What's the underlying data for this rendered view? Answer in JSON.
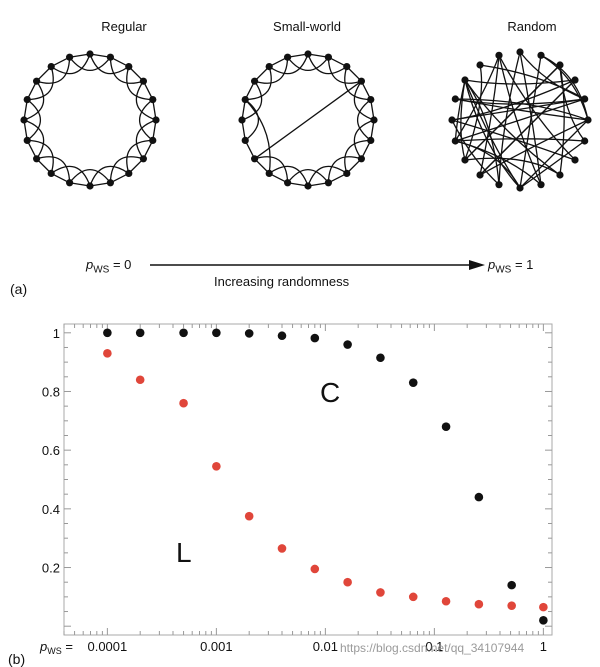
{
  "panel_a": {
    "label": "(a)",
    "networks": [
      {
        "title": "Regular",
        "icon": "regular-ring-network"
      },
      {
        "title": "Small-world",
        "icon": "small-world-ring-network"
      },
      {
        "title": "Random",
        "icon": "random-network"
      }
    ],
    "arrow": {
      "left_symbol": "p",
      "left_sub": "WS",
      "left_value": " = 0",
      "right_symbol": "p",
      "right_sub": "WS",
      "right_value": " = 1",
      "caption": "Increasing randomness"
    }
  },
  "panel_b": {
    "label": "(b)"
  },
  "watermark": "https://blog.csdn.net/qq_34107944",
  "chart_data": {
    "type": "scatter",
    "x_scale": "log",
    "x": [
      0.0001,
      0.0002,
      0.0005,
      0.001,
      0.002,
      0.004,
      0.008,
      0.016,
      0.032,
      0.064,
      0.128,
      0.256,
      0.512,
      1
    ],
    "xlim": [
      4e-05,
      1.2
    ],
    "ylim": [
      -0.03,
      1.03
    ],
    "xticks": [
      {
        "value": 0.0001,
        "label": "0.0001"
      },
      {
        "value": 0.001,
        "label": "0.001"
      },
      {
        "value": 0.01,
        "label": "0.01"
      },
      {
        "value": 0.1,
        "label": "0.1"
      },
      {
        "value": 1,
        "label": "1"
      }
    ],
    "yticks": [
      {
        "value": 0.2,
        "label": "0.2"
      },
      {
        "value": 0.4,
        "label": "0.4"
      },
      {
        "value": 0.6,
        "label": "0.6"
      },
      {
        "value": 0.8,
        "label": "0.8"
      },
      {
        "value": 1,
        "label": "1"
      }
    ],
    "xlabel_symbol": "p",
    "xlabel_sub": "WS",
    "xlabel_suffix": " = ",
    "series": [
      {
        "name": "C",
        "color": "#111111",
        "values": [
          1.0,
          1.0,
          1.0,
          1.0,
          0.998,
          0.99,
          0.982,
          0.96,
          0.915,
          0.83,
          0.68,
          0.44,
          0.14,
          0.02
        ]
      },
      {
        "name": "L",
        "color": "#e0463a",
        "values": [
          0.93,
          0.84,
          0.76,
          0.545,
          0.375,
          0.265,
          0.195,
          0.15,
          0.115,
          0.1,
          0.085,
          0.075,
          0.07,
          0.065
        ]
      }
    ],
    "grid": false
  }
}
